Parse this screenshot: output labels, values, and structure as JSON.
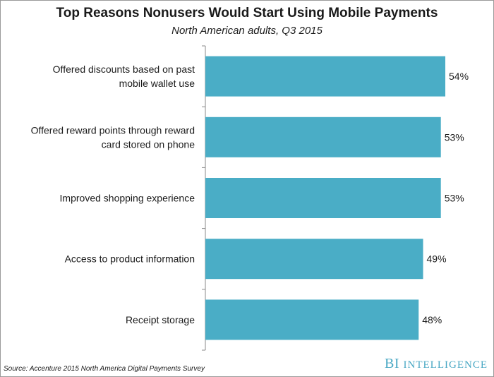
{
  "chart_data": {
    "type": "bar",
    "orientation": "horizontal",
    "title": "Top Reasons Nonusers Would Start Using Mobile Payments",
    "subtitle": "North American adults, Q3 2015",
    "categories": [
      [
        "Offered discounts based on past",
        "mobile wallet use"
      ],
      [
        "Offered reward points through reward",
        "card stored on phone"
      ],
      [
        "Improved shopping experience"
      ],
      [
        "Access to product information"
      ],
      [
        "Receipt storage"
      ]
    ],
    "values": [
      54,
      53,
      53,
      49,
      48
    ],
    "value_labels": [
      "54%",
      "53%",
      "53%",
      "49%",
      "48%"
    ],
    "unit": "%",
    "xlim": [
      0,
      54
    ],
    "bar_color": "#4aadc6",
    "grid": false
  },
  "footer": {
    "source": "Source: Accenture 2015 North America Digital Payments Survey",
    "brand_initials": "BI",
    "brand_word": "Intelligence"
  }
}
